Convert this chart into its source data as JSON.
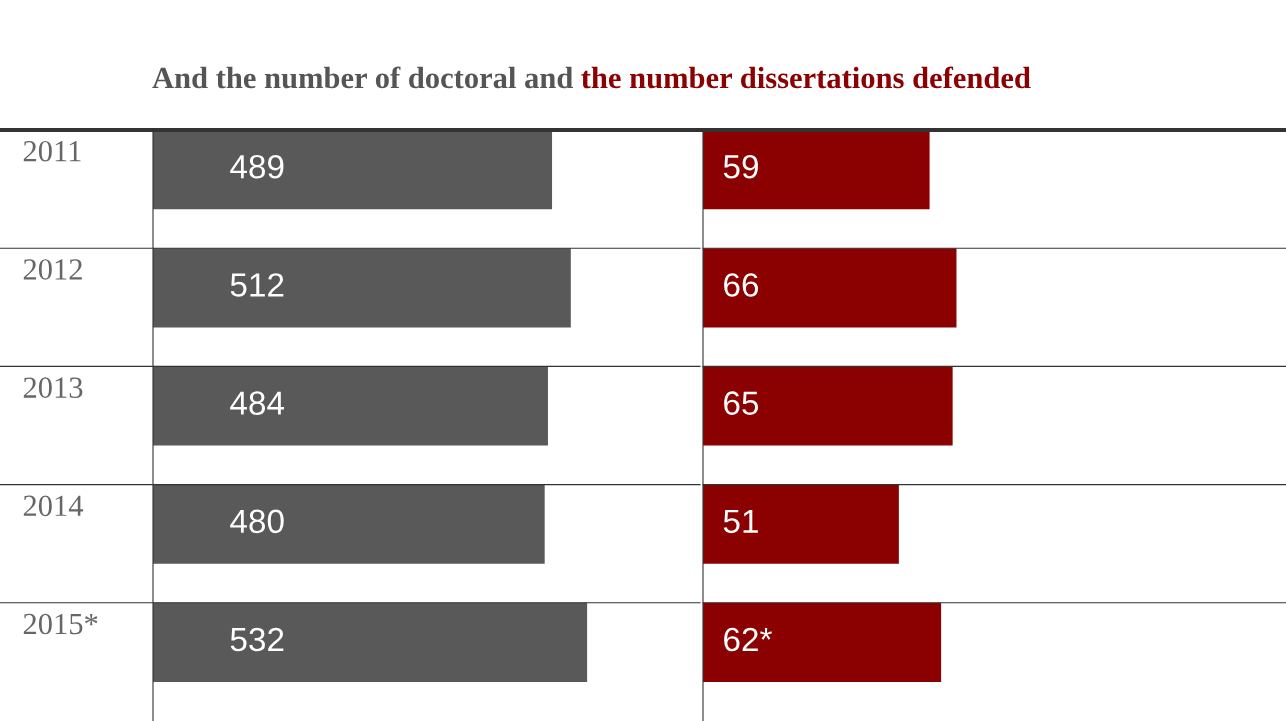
{
  "chart_data": [
    {
      "type": "bar",
      "orientation": "horizontal",
      "title": "And the number of doctoral and",
      "categories": [
        "2011",
        "2012",
        "2013",
        "2014",
        "2015*"
      ],
      "series": [
        {
          "color": "#595959",
          "values": [
            489,
            512,
            484,
            480,
            532
          ]
        }
      ],
      "data_labels": true,
      "tick_labels": "y",
      "legend": false,
      "grid": false
    },
    {
      "type": "bar",
      "orientation": "horizontal",
      "title": "the number dissertations defended",
      "categories": [
        null,
        null,
        null,
        null,
        null
      ],
      "series": [
        {
          "color": "#8b0000",
          "values": [
            59,
            66,
            65,
            51,
            62
          ],
          "value_labels": [
            "59",
            "66",
            "65",
            "51",
            "62*"
          ]
        }
      ],
      "tick_labels": false,
      "legend": false,
      "grid": false
    }
  ]
}
